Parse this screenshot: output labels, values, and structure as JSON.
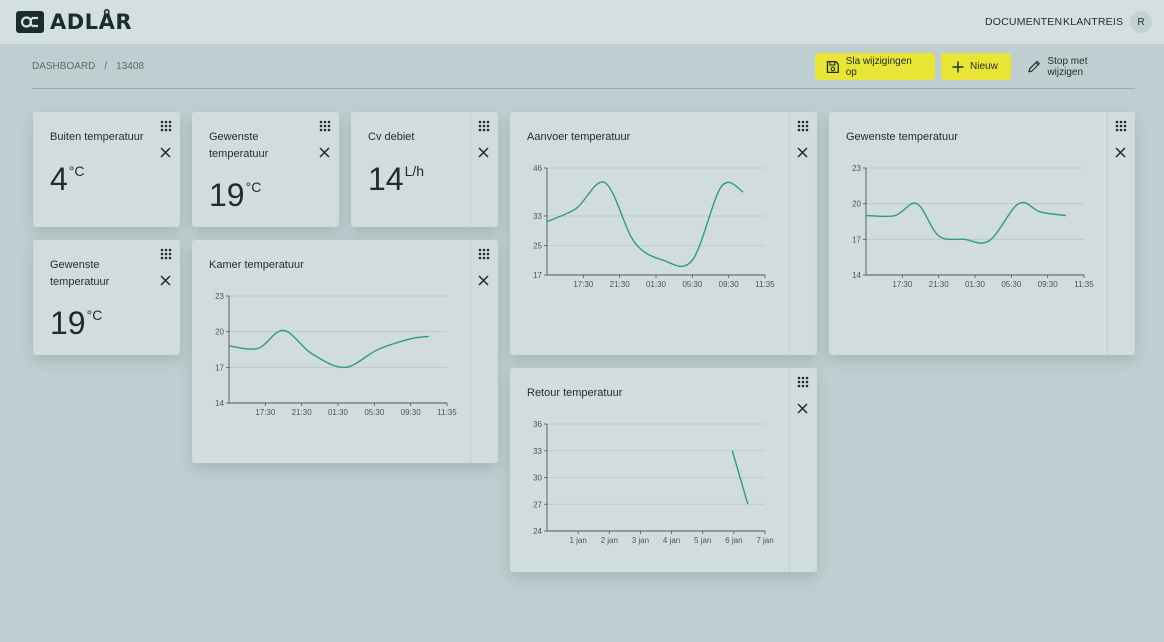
{
  "app": {
    "logo_text": "ADLÅR"
  },
  "nav": {
    "documents": "DOCUMENTEN",
    "customers": "KLANTREIS",
    "avatar_initial": "R"
  },
  "breadcrumb": {
    "root": "DASHBOARD",
    "separator": "/",
    "current": "13408"
  },
  "toolbar": {
    "save_label": "Sla wijzigingen op",
    "new_label": "Nieuw",
    "stop_label": "Stop met wijzigen"
  },
  "colors": {
    "accent": "#e9e537",
    "line": "#2f9a87",
    "background": "#bfcfd1",
    "card": "#d1dddd"
  },
  "widgets": {
    "outside_temp": {
      "title": "Buiten temperatuur",
      "value": "4",
      "unit": "°C"
    },
    "desired_temp_a": {
      "title": "Gewenste temperatuur",
      "value": "19",
      "unit": "°C"
    },
    "cv_flow": {
      "title": "Cv debiet",
      "value": "14",
      "unit": "L/h"
    },
    "desired_temp_b": {
      "title": "Gewenste temperatuur",
      "value": "19",
      "unit": "°C"
    }
  },
  "charts": {
    "room": {
      "title": "Kamer temperatuur"
    },
    "supply": {
      "title": "Aanvoer temperatuur"
    },
    "desired": {
      "title": "Gewenste temperatuur"
    },
    "return": {
      "title": "Retour temperatuur"
    }
  },
  "chart_data": [
    {
      "id": "room",
      "type": "line",
      "title": "Kamer temperatuur",
      "xticks": [
        "17:30",
        "21:30",
        "01:30",
        "05:30",
        "09:30",
        "11:35"
      ],
      "yticks": [
        14,
        17,
        20,
        23
      ],
      "ylim": [
        14,
        23
      ],
      "xlim": [
        0,
        6
      ],
      "x": [
        0,
        0.8,
        1.5,
        2.3,
        3.2,
        4.1,
        5.0,
        5.5
      ],
      "y": [
        18.8,
        18.6,
        20.1,
        18.1,
        17.0,
        18.5,
        19.4,
        19.6
      ]
    },
    {
      "id": "supply",
      "type": "line",
      "title": "Aanvoer temperatuur",
      "xticks": [
        "17:30",
        "21:30",
        "01:30",
        "05:30",
        "09:30",
        "11:35"
      ],
      "yticks": [
        17,
        25,
        33,
        46
      ],
      "ylim": [
        17,
        46
      ],
      "xlim": [
        0,
        6
      ],
      "x": [
        0,
        0.8,
        1.6,
        2.4,
        3.2,
        4.0,
        4.8,
        5.4
      ],
      "y": [
        31.5,
        35,
        42,
        26,
        21,
        21,
        41,
        39.5
      ]
    },
    {
      "id": "desired",
      "type": "line",
      "title": "Gewenste temperatuur",
      "xticks": [
        "17:30",
        "21:30",
        "01:30",
        "05:30",
        "09:30",
        "11:35"
      ],
      "yticks": [
        14,
        17,
        20,
        23
      ],
      "ylim": [
        14,
        23
      ],
      "xlim": [
        0,
        6
      ],
      "x": [
        0,
        0.8,
        1.4,
        2.0,
        2.7,
        3.4,
        4.2,
        4.8,
        5.5
      ],
      "y": [
        19,
        19,
        20,
        17.3,
        17.0,
        16.9,
        20.0,
        19.3,
        19.0
      ]
    },
    {
      "id": "return",
      "type": "line",
      "title": "Retour temperatuur",
      "xticks": [
        "1 jan",
        "2 jan",
        "3 jan",
        "4 jan",
        "5 jan",
        "6 jan",
        "7 jan"
      ],
      "xtick_positions": [
        1,
        2,
        3,
        4,
        5,
        6,
        7
      ],
      "yticks": [
        24,
        27,
        30,
        33,
        36
      ],
      "ylim": [
        24,
        36
      ],
      "xlim": [
        0,
        7
      ],
      "x": [
        5.95,
        6.45
      ],
      "y": [
        33,
        27
      ]
    }
  ]
}
